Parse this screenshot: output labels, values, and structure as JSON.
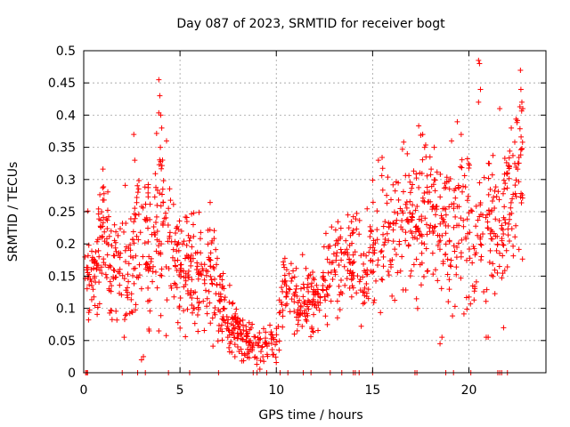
{
  "chart_data": {
    "type": "scatter",
    "title": "Day 087 of 2023, SRMTID for receiver bogt",
    "xlabel": "GPS time / hours",
    "ylabel": "SRMTID / TECUs",
    "xlim": [
      0,
      24
    ],
    "ylim": [
      0,
      0.5
    ],
    "xticks": [
      0,
      5,
      10,
      15,
      20
    ],
    "yticks": [
      0,
      0.05,
      0.1,
      0.15,
      0.2,
      0.25,
      0.3,
      0.35,
      0.4,
      0.45,
      0.5
    ],
    "xtick_labels": [
      "0",
      "5",
      "10",
      "15",
      "20"
    ],
    "ytick_labels": [
      "0",
      "0.05",
      "0.1",
      "0.15",
      "0.2",
      "0.25",
      "0.3",
      "0.35",
      "0.4",
      "0.45",
      "0.5"
    ],
    "grid": true,
    "marker": "+",
    "series": [
      {
        "name": "SRMTID",
        "color": "#ff0000",
        "trend": {
          "x": [
            0,
            0.5,
            1,
            1.5,
            2,
            2.5,
            3,
            3.5,
            4,
            4.5,
            5,
            5.5,
            6,
            6.5,
            7,
            7.5,
            8,
            8.5,
            9,
            9.5,
            10,
            10.5,
            11,
            11.5,
            12,
            12.5,
            13,
            13.5,
            14,
            14.5,
            15,
            15.5,
            16,
            16.5,
            17,
            17.5,
            18,
            18.5,
            19,
            19.5,
            20,
            20.5,
            21,
            21.5,
            22,
            22.5,
            22.8
          ],
          "y": [
            0.2,
            0.13,
            0.24,
            0.15,
            0.18,
            0.19,
            0.22,
            0.17,
            0.25,
            0.18,
            0.15,
            0.17,
            0.16,
            0.15,
            0.13,
            0.08,
            0.06,
            0.05,
            0.045,
            0.045,
            0.05,
            0.14,
            0.11,
            0.1,
            0.12,
            0.14,
            0.17,
            0.18,
            0.17,
            0.15,
            0.19,
            0.21,
            0.2,
            0.22,
            0.22,
            0.24,
            0.26,
            0.22,
            0.21,
            0.25,
            0.22,
            0.2,
            0.24,
            0.22,
            0.26,
            0.3,
            0.33
          ]
        },
        "spread": [
          0.04,
          0.03,
          0.05,
          0.04,
          0.05,
          0.05,
          0.06,
          0.05,
          0.07,
          0.05,
          0.04,
          0.04,
          0.04,
          0.04,
          0.04,
          0.025,
          0.02,
          0.018,
          0.018,
          0.018,
          0.02,
          0.03,
          0.025,
          0.03,
          0.03,
          0.035,
          0.04,
          0.04,
          0.04,
          0.04,
          0.045,
          0.05,
          0.05,
          0.05,
          0.05,
          0.06,
          0.06,
          0.05,
          0.06,
          0.06,
          0.06,
          0.06,
          0.06,
          0.06,
          0.06,
          0.06,
          0.06
        ],
        "point_count": 1400,
        "peaks": [
          {
            "x": 2.6,
            "y": 0.37
          },
          {
            "x": 2.65,
            "y": 0.33
          },
          {
            "x": 3.9,
            "y": 0.455
          },
          {
            "x": 3.95,
            "y": 0.43
          },
          {
            "x": 4.0,
            "y": 0.4
          },
          {
            "x": 4.05,
            "y": 0.38
          },
          {
            "x": 3.98,
            "y": 0.35
          },
          {
            "x": 4.3,
            "y": 0.36
          },
          {
            "x": 17.6,
            "y": 0.37
          },
          {
            "x": 17.7,
            "y": 0.35
          },
          {
            "x": 18.2,
            "y": 0.35
          },
          {
            "x": 19.1,
            "y": 0.36
          },
          {
            "x": 19.6,
            "y": 0.37
          },
          {
            "x": 20.5,
            "y": 0.485
          },
          {
            "x": 20.55,
            "y": 0.48
          },
          {
            "x": 20.6,
            "y": 0.44
          },
          {
            "x": 20.5,
            "y": 0.42
          },
          {
            "x": 21.6,
            "y": 0.41
          },
          {
            "x": 22.2,
            "y": 0.38
          },
          {
            "x": 22.7,
            "y": 0.44
          },
          {
            "x": 22.75,
            "y": 0.42
          },
          {
            "x": 22.8,
            "y": 0.41
          },
          {
            "x": 15.3,
            "y": 0.33
          },
          {
            "x": 16.8,
            "y": 0.34
          }
        ],
        "lows": [
          {
            "x": 3.0,
            "y": 0.02
          },
          {
            "x": 3.1,
            "y": 0.025
          },
          {
            "x": 2.1,
            "y": 0.055
          },
          {
            "x": 18.6,
            "y": 0.055
          },
          {
            "x": 18.5,
            "y": 0.045
          },
          {
            "x": 20.9,
            "y": 0.055
          },
          {
            "x": 21.0,
            "y": 0.055
          },
          {
            "x": 21.8,
            "y": 0.07
          },
          {
            "x": 3.9,
            "y": 0.065
          },
          {
            "x": 3.4,
            "y": 0.065
          }
        ],
        "zeros": [
          0.1,
          0.15,
          0.2,
          2.0,
          2.8,
          3.2,
          4.4,
          5.5,
          7.0,
          8.8,
          9.0,
          9.5,
          10.2,
          10.6,
          11.4,
          11.8,
          12.8,
          13.4,
          14.0,
          14.1,
          14.3,
          15.0,
          17.2,
          17.3,
          18.8,
          19.2,
          20.1,
          21.5,
          21.6,
          21.7,
          22.0
        ]
      }
    ]
  }
}
